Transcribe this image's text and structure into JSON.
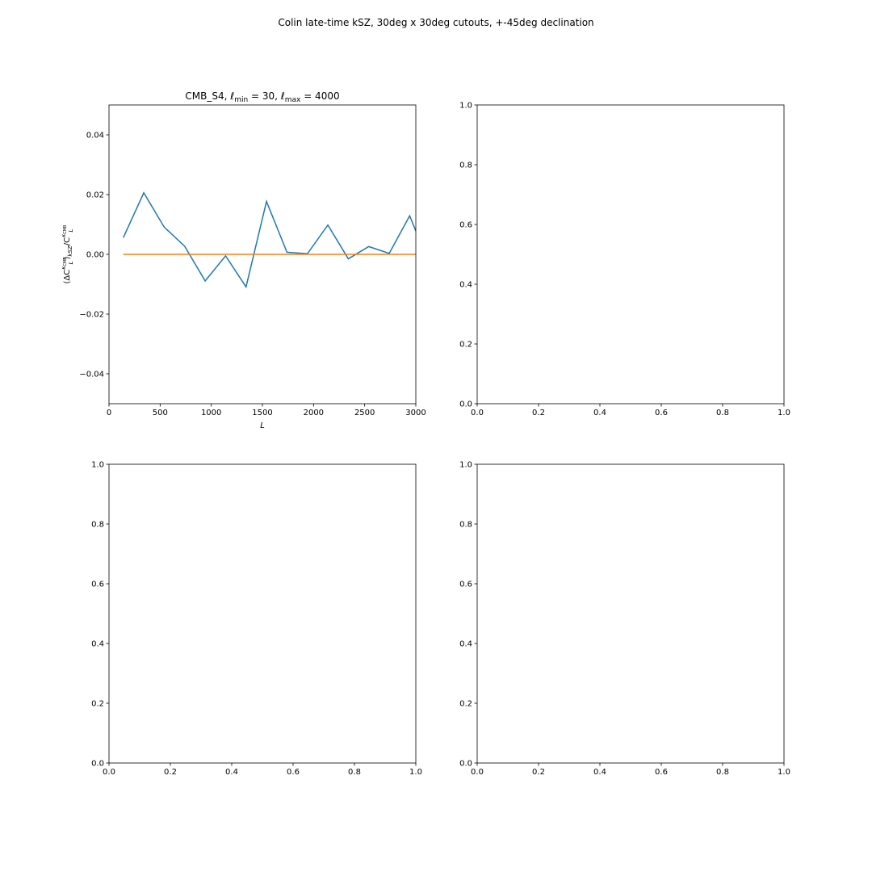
{
  "figure_title": "Colin late-time kSZ, 30deg x 30deg cutouts, +-45deg declination",
  "chart_data": [
    {
      "type": "line",
      "panel": "top-left",
      "title": "CMB_S4, ℓmin = 30, ℓmax = 4000",
      "title_parts": {
        "prefix": "CMB_S4, ",
        "ell": "ℓ",
        "min_sub": "min",
        "min_val": " = 30, ",
        "max_sub": "max",
        "max_val": " = 4000"
      },
      "xlabel": "L",
      "ylabel": "(ΔC_L^{κCMB})_{kSZ}/C_L^{κCMB}",
      "xlim": [
        0,
        3000
      ],
      "ylim": [
        -0.05,
        0.05
      ],
      "xticks": [
        0,
        500,
        1000,
        1500,
        2000,
        2500,
        3000
      ],
      "xtick_labels": [
        "0",
        "500",
        "1000",
        "1500",
        "2000",
        "2500",
        "3000"
      ],
      "yticks": [
        -0.04,
        -0.02,
        0.0,
        0.02,
        0.04
      ],
      "ytick_labels": [
        "−0.04",
        "−0.02",
        "0.00",
        "0.02",
        "0.04"
      ],
      "grid": false,
      "series": [
        {
          "color": "#1f77b4",
          "x": [
            140,
            340,
            540,
            740,
            940,
            1140,
            1340,
            1540,
            1740,
            1940,
            2140,
            2340,
            2540,
            2740,
            2940,
            3000
          ],
          "y": [
            0.0056,
            0.0206,
            0.0091,
            0.0027,
            -0.0089,
            -0.0005,
            -0.0109,
            0.0177,
            0.0007,
            0.0002,
            0.0098,
            -0.0015,
            0.0026,
            0.0003,
            0.0129,
            0.0078
          ]
        },
        {
          "color": "#ff7f0e",
          "x": [
            140,
            3000
          ],
          "y": [
            0.0,
            0.0
          ]
        }
      ]
    },
    {
      "type": "line",
      "panel": "top-right",
      "xlim": [
        0,
        1
      ],
      "ylim": [
        0,
        1
      ],
      "xticks": [
        0,
        0.2,
        0.4,
        0.6,
        0.8,
        1.0
      ],
      "xtick_labels": [
        "0.0",
        "0.2",
        "0.4",
        "0.6",
        "0.8",
        "1.0"
      ],
      "yticks": [
        0,
        0.2,
        0.4,
        0.6,
        0.8,
        1.0
      ],
      "ytick_labels": [
        "0.0",
        "0.2",
        "0.4",
        "0.6",
        "0.8",
        "1.0"
      ],
      "grid": false,
      "series": []
    },
    {
      "type": "line",
      "panel": "bottom-left",
      "xlim": [
        0,
        1
      ],
      "ylim": [
        0,
        1
      ],
      "xticks": [
        0,
        0.2,
        0.4,
        0.6,
        0.8,
        1.0
      ],
      "xtick_labels": [
        "0.0",
        "0.2",
        "0.4",
        "0.6",
        "0.8",
        "1.0"
      ],
      "yticks": [
        0,
        0.2,
        0.4,
        0.6,
        0.8,
        1.0
      ],
      "ytick_labels": [
        "0.0",
        "0.2",
        "0.4",
        "0.6",
        "0.8",
        "1.0"
      ],
      "grid": false,
      "series": []
    },
    {
      "type": "line",
      "panel": "bottom-right",
      "xlim": [
        0,
        1
      ],
      "ylim": [
        0,
        1
      ],
      "xticks": [
        0,
        0.2,
        0.4,
        0.6,
        0.8,
        1.0
      ],
      "xtick_labels": [
        "0.0",
        "0.2",
        "0.4",
        "0.6",
        "0.8",
        "1.0"
      ],
      "yticks": [
        0,
        0.2,
        0.4,
        0.6,
        0.8,
        1.0
      ],
      "ytick_labels": [
        "0.0",
        "0.2",
        "0.4",
        "0.6",
        "0.8",
        "1.0"
      ],
      "grid": false,
      "series": []
    }
  ]
}
